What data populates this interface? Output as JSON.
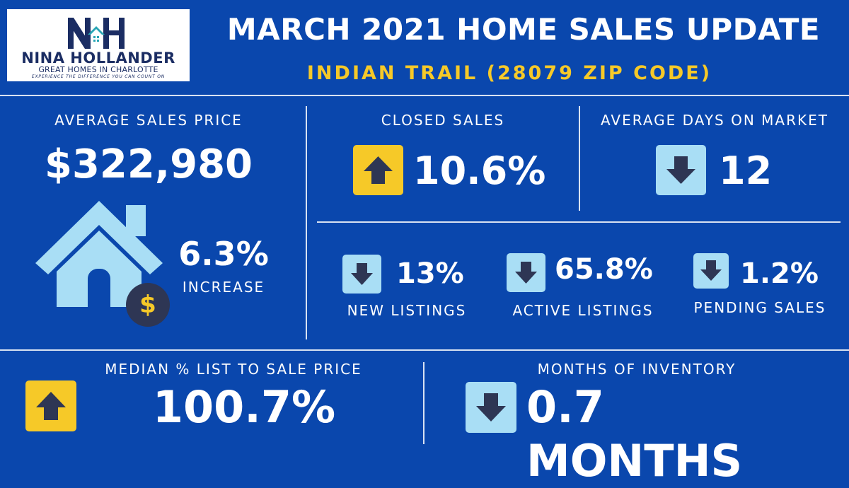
{
  "logo": {
    "monogram": "NH",
    "name": "NINA HOLLANDER",
    "subtitle": "GREAT HOMES IN CHARLOTTE",
    "tagline": "EXPERIENCE THE DIFFERENCE YOU CAN COUNT ON"
  },
  "header": {
    "title": "MARCH 2021 HOME SALES UPDATE",
    "subtitle": "INDIAN TRAIL (28079 ZIP CODE)"
  },
  "average_sales_price": {
    "label": "AVERAGE SALES PRICE",
    "value": "$322,980",
    "change": "6.3%",
    "change_label": "INCREASE",
    "dollar_symbol": "$"
  },
  "closed_sales": {
    "label": "CLOSED SALES",
    "value": "10.6%",
    "direction": "up"
  },
  "average_days_on_market": {
    "label": "AVERAGE DAYS ON MARKET",
    "value": "12",
    "direction": "down"
  },
  "new_listings": {
    "label": "NEW LISTINGS",
    "value": "13%",
    "direction": "down"
  },
  "active_listings": {
    "label": "ACTIVE LISTINGS",
    "value": "65.8%",
    "direction": "down"
  },
  "pending_sales": {
    "label": "PENDING SALES",
    "value": "1.2%",
    "direction": "down"
  },
  "median_list_to_sale": {
    "label": "MEDIAN % LIST TO SALE PRICE",
    "value": "100.7%",
    "direction": "up"
  },
  "months_of_inventory": {
    "label": "MONTHS OF INVENTORY",
    "value": "0.7 MONTHS",
    "direction": "down"
  },
  "colors": {
    "background": "#0a47ad",
    "accent_yellow": "#f6c928",
    "light_blue": "#a9def5",
    "navy": "#1b2d63",
    "divider": "#d8e2f2"
  },
  "icons": [
    "arrow-up-icon",
    "arrow-down-icon",
    "house-icon",
    "dollar-coin-icon"
  ]
}
